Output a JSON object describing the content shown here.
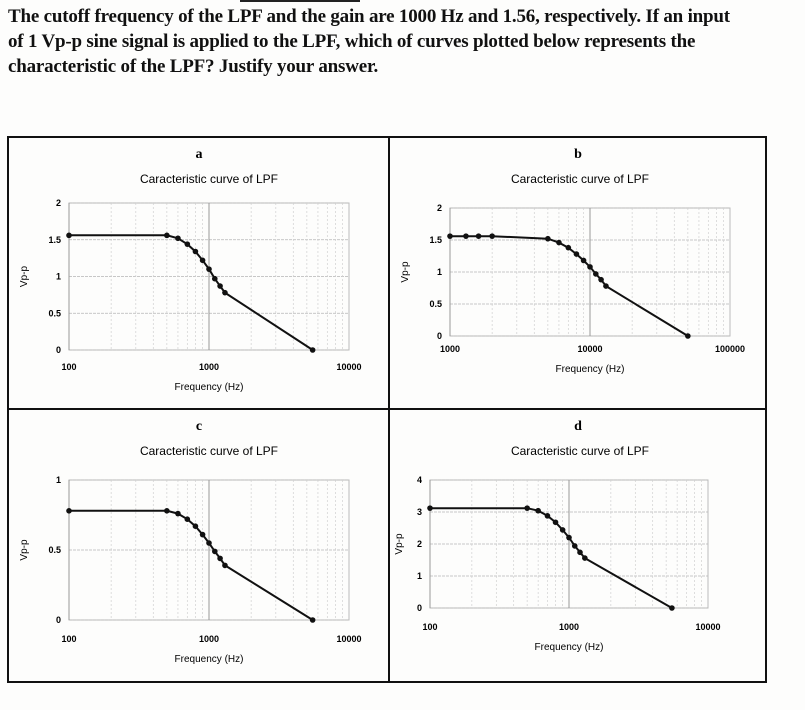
{
  "question": {
    "line1": "The cutoff frequency of the LPF and the gain are 1000 Hz and 1.56, respectively. If an input",
    "line2": "of 1 Vp-p sine signal is applied to the LPF, which of curves plotted below represents the",
    "line3": "characteristic of the LPF? Justify your answer."
  },
  "chart_data": [
    {
      "type": "line",
      "panel": "a",
      "title": "Caracteristic curve of LPF",
      "xlabel": "Frequency (Hz)",
      "ylabel": "Vp-p",
      "xscale": "log",
      "xlim": [
        100,
        10000
      ],
      "ylim": [
        0,
        2
      ],
      "xticks": [
        "100",
        "1000",
        "10000"
      ],
      "yticks": [
        "0",
        "0.5",
        "1",
        "1.5",
        "2"
      ],
      "x": [
        100,
        500,
        600,
        700,
        800,
        900,
        1000,
        1100,
        1200,
        1300,
        5500
      ],
      "y": [
        1.56,
        1.56,
        1.52,
        1.44,
        1.34,
        1.22,
        1.1,
        0.97,
        0.87,
        0.78,
        0
      ]
    },
    {
      "type": "line",
      "panel": "b",
      "title": "Caracteristic curve of LPF",
      "xlabel": "Frequency (Hz)",
      "ylabel": "Vp-p",
      "xscale": "log",
      "xlim": [
        1000,
        100000
      ],
      "ylim": [
        0,
        2
      ],
      "xticks": [
        "1000",
        "10000",
        "100000"
      ],
      "yticks": [
        "0",
        "0.5",
        "1",
        "1.5",
        "2"
      ],
      "x": [
        1000,
        1300,
        1600,
        2000,
        5000,
        6000,
        7000,
        8000,
        9000,
        10000,
        11000,
        12000,
        13000,
        50000
      ],
      "y": [
        1.56,
        1.56,
        1.56,
        1.56,
        1.52,
        1.46,
        1.38,
        1.28,
        1.18,
        1.08,
        0.97,
        0.88,
        0.78,
        0
      ]
    },
    {
      "type": "line",
      "panel": "c",
      "title": "Caracteristic curve of LPF",
      "xlabel": "Frequency (Hz)",
      "ylabel": "Vp-p",
      "xscale": "log",
      "xlim": [
        100,
        10000
      ],
      "ylim": [
        0,
        1
      ],
      "xticks": [
        "100",
        "1000",
        "10000"
      ],
      "yticks": [
        "0",
        "0.5",
        "1"
      ],
      "x": [
        100,
        500,
        600,
        700,
        800,
        900,
        1000,
        1100,
        1200,
        1300,
        5500
      ],
      "y": [
        0.78,
        0.78,
        0.76,
        0.72,
        0.67,
        0.61,
        0.55,
        0.49,
        0.44,
        0.39,
        0
      ]
    },
    {
      "type": "line",
      "panel": "d",
      "title": "Caracteristic curve of LPF",
      "xlabel": "Frequency (Hz)",
      "ylabel": "Vp-p",
      "xscale": "log",
      "xlim": [
        100,
        10000
      ],
      "ylim": [
        0,
        4
      ],
      "xticks": [
        "100",
        "1000",
        "10000"
      ],
      "yticks": [
        "0",
        "1",
        "2",
        "3",
        "4"
      ],
      "x": [
        100,
        500,
        600,
        700,
        800,
        900,
        1000,
        1100,
        1200,
        1300,
        5500
      ],
      "y": [
        3.12,
        3.12,
        3.04,
        2.88,
        2.68,
        2.44,
        2.2,
        1.94,
        1.74,
        1.56,
        0
      ]
    }
  ]
}
